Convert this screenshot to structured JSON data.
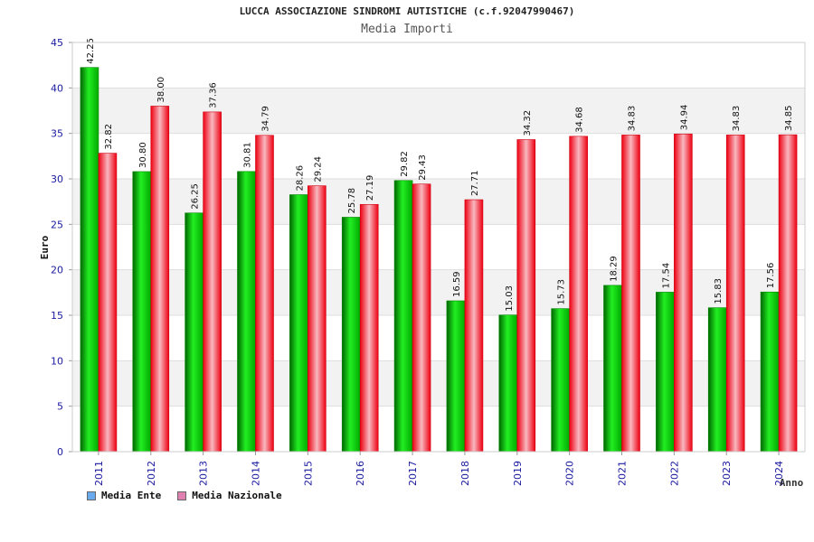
{
  "header": {
    "title": "LUCCA ASSOCIAZIONE SINDROMI AUTISTICHE (c.f.92047990467)",
    "subtitle": "Media Importi"
  },
  "legend": {
    "items": [
      {
        "label": "Media Ente",
        "color": "#6aaaee"
      },
      {
        "label": "Media Nazionale",
        "color": "#e080b0"
      }
    ]
  },
  "chart_data": {
    "type": "bar",
    "title": "LUCCA ASSOCIAZIONE SINDROMI AUTISTICHE (c.f.92047990467)",
    "subtitle": "Media Importi",
    "xlabel": "Anno",
    "ylabel": "Euro",
    "ylim": [
      0,
      45
    ],
    "yticks": [
      0,
      5,
      10,
      15,
      20,
      25,
      30,
      35,
      40,
      45
    ],
    "categories": [
      "2011",
      "2012",
      "2013",
      "2014",
      "2015",
      "2016",
      "2017",
      "2018",
      "2019",
      "2020",
      "2021",
      "2022",
      "2023",
      "2024"
    ],
    "series": [
      {
        "name": "Media Ente",
        "color": "#00cc00",
        "values": [
          42.25,
          30.8,
          26.25,
          30.81,
          28.26,
          25.78,
          29.82,
          16.59,
          15.03,
          15.73,
          18.29,
          17.54,
          15.83,
          17.56
        ],
        "labels": [
          "42.25",
          "30.80",
          "26.25",
          "30.81",
          "28.26",
          "25.78",
          "29.82",
          "16.59",
          "15.03",
          "15.73",
          "18.29",
          "17.54",
          "15.83",
          "17.56"
        ]
      },
      {
        "name": "Media Nazionale",
        "color": "#ee2233",
        "values": [
          32.82,
          38.0,
          37.36,
          34.79,
          29.24,
          27.19,
          29.43,
          27.71,
          34.32,
          34.68,
          34.83,
          34.94,
          34.83,
          34.85
        ],
        "labels": [
          "32.82",
          "38.00",
          "37.36",
          "34.79",
          "29.24",
          "27.19",
          "29.43",
          "27.71",
          "34.32",
          "34.68",
          "34.83",
          "34.94",
          "34.83",
          "34.85"
        ]
      }
    ],
    "grid": true,
    "legend_position": "bottom-left"
  }
}
